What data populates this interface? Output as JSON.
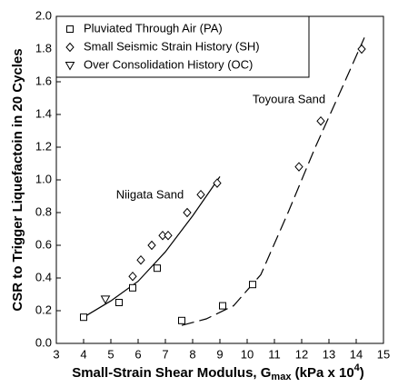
{
  "chart_data": {
    "type": "scatter",
    "xlabel": {
      "text": "Small-Strain Shear Modulus, G",
      "sub": "max",
      "text2": " (kPa x 10",
      "sup": "4",
      "text3": ")"
    },
    "ylabel": "CSR to Trigger Liquefactoin in 20 Cycles",
    "xlim": [
      3,
      15
    ],
    "xticks": [
      3,
      4,
      5,
      6,
      7,
      8,
      9,
      10,
      11,
      12,
      13,
      14,
      15
    ],
    "ylim": [
      0,
      2
    ],
    "yticks": [
      {
        "value": 0,
        "label": "0.0"
      },
      0.2,
      0.4,
      0.6,
      0.8,
      {
        "value": 1,
        "label": "1.0"
      },
      1.2,
      1.4,
      1.6,
      1.8,
      {
        "value": 2,
        "label": "2.0"
      }
    ],
    "legend": "upper left",
    "series": [
      {
        "name": "Pluviated Through Air (PA)",
        "marker": "square",
        "color": "#000000",
        "x": [
          4.0,
          5.3,
          5.8,
          6.7,
          7.6,
          9.1,
          10.2
        ],
        "values": [
          0.16,
          0.25,
          0.34,
          0.46,
          0.14,
          0.23,
          0.36
        ]
      },
      {
        "name": "Small Seismic Strain History (SH)",
        "marker": "diamond",
        "color": "#000000",
        "x": [
          5.8,
          6.1,
          6.5,
          6.9,
          7.1,
          7.8,
          8.3,
          8.9,
          11.9,
          12.7,
          14.2
        ],
        "values": [
          0.41,
          0.51,
          0.6,
          0.66,
          0.66,
          0.8,
          0.91,
          0.98,
          1.08,
          1.36,
          1.8
        ]
      },
      {
        "name": "Over Consolidation History (OC)",
        "marker": "triangle",
        "color": "#000000",
        "x": [
          4.8
        ],
        "values": [
          0.27
        ]
      }
    ],
    "curves": [
      {
        "dashed": false,
        "color": "#000000",
        "x": [
          4,
          5,
          6,
          7,
          8,
          9
        ],
        "values": [
          0.16,
          0.26,
          0.38,
          0.56,
          0.78,
          1.02
        ]
      },
      {
        "dashed": true,
        "color": "#000000",
        "x": [
          7.6,
          8.5,
          9.5,
          10.5,
          11.5,
          12.5,
          13.5,
          14.3
        ],
        "values": [
          0.11,
          0.15,
          0.23,
          0.42,
          0.8,
          1.2,
          1.57,
          1.87
        ]
      }
    ],
    "annotations": [
      "Niigata Sand",
      "Toyoura Sand"
    ]
  }
}
